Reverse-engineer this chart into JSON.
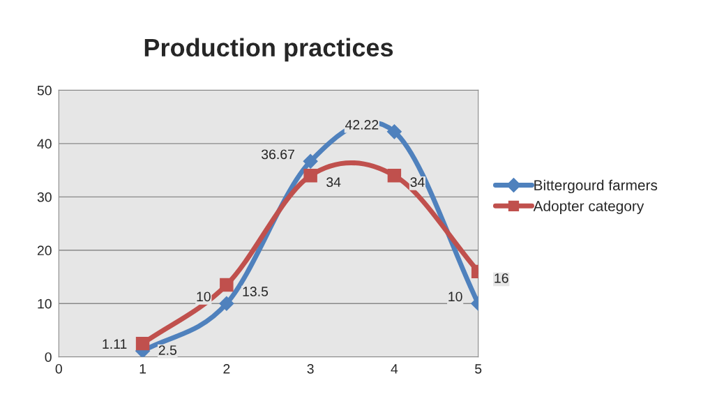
{
  "chart_data": {
    "type": "line",
    "title": "Production practices",
    "x": [
      1,
      2,
      3,
      4,
      5
    ],
    "series": [
      {
        "name": "Bittergourd farmers",
        "color": "#4f81bd",
        "marker": "diamond",
        "values": [
          1.11,
          10,
          36.67,
          42.22,
          10
        ]
      },
      {
        "name": "Adopter category",
        "color": "#c0504d",
        "marker": "square",
        "values": [
          2.5,
          13.5,
          34,
          34,
          16
        ]
      }
    ],
    "xlim": [
      0,
      5
    ],
    "xticks": [
      0,
      1,
      2,
      3,
      4,
      5
    ],
    "ylim": [
      0,
      50
    ],
    "yticks": [
      0,
      10,
      20,
      30,
      40,
      50
    ],
    "grid": "y",
    "legend": "right",
    "data_labels": true,
    "line_style": "solid"
  }
}
